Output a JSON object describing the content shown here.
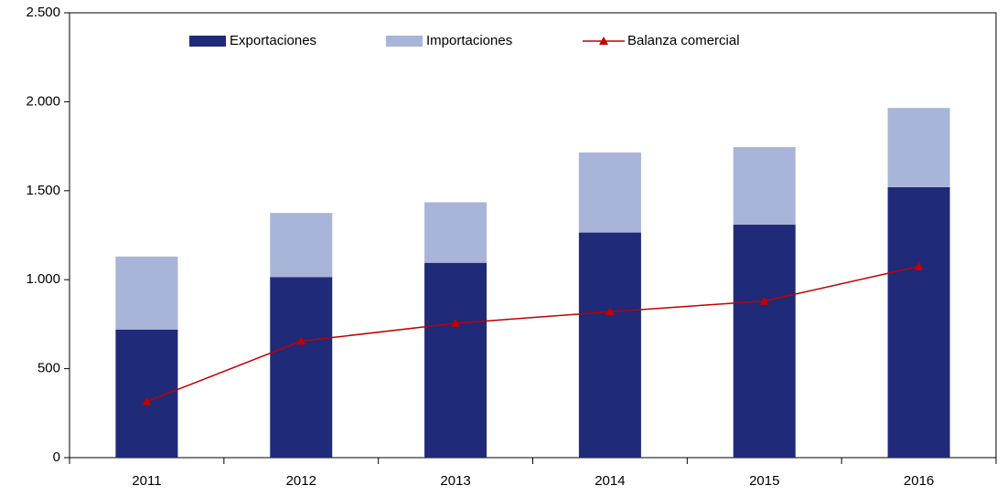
{
  "chart_data": {
    "type": "bar",
    "stacked": true,
    "categories": [
      "2011",
      "2012",
      "2013",
      "2014",
      "2015",
      "2016"
    ],
    "series": [
      {
        "name": "Exportaciones",
        "color": "#1f2a78",
        "values": [
          720,
          1015,
          1095,
          1265,
          1310,
          1520
        ]
      },
      {
        "name": "Importaciones",
        "color": "#a8b4d8",
        "values": [
          410,
          360,
          340,
          450,
          435,
          445
        ]
      },
      {
        "name": "Balanza comercial",
        "type": "line",
        "marker": "triangle",
        "color": "#c00000",
        "values": [
          315,
          655,
          755,
          820,
          880,
          1075
        ]
      }
    ],
    "ylim": [
      0,
      2500
    ],
    "yticks": [
      0,
      500,
      {
        "value": 1000,
        "label": "1.000"
      },
      {
        "value": 1500,
        "label": "1.500"
      },
      {
        "value": 2000,
        "label": "2.000"
      },
      {
        "value": 2500,
        "label": "2.500"
      }
    ],
    "legend": "top"
  }
}
